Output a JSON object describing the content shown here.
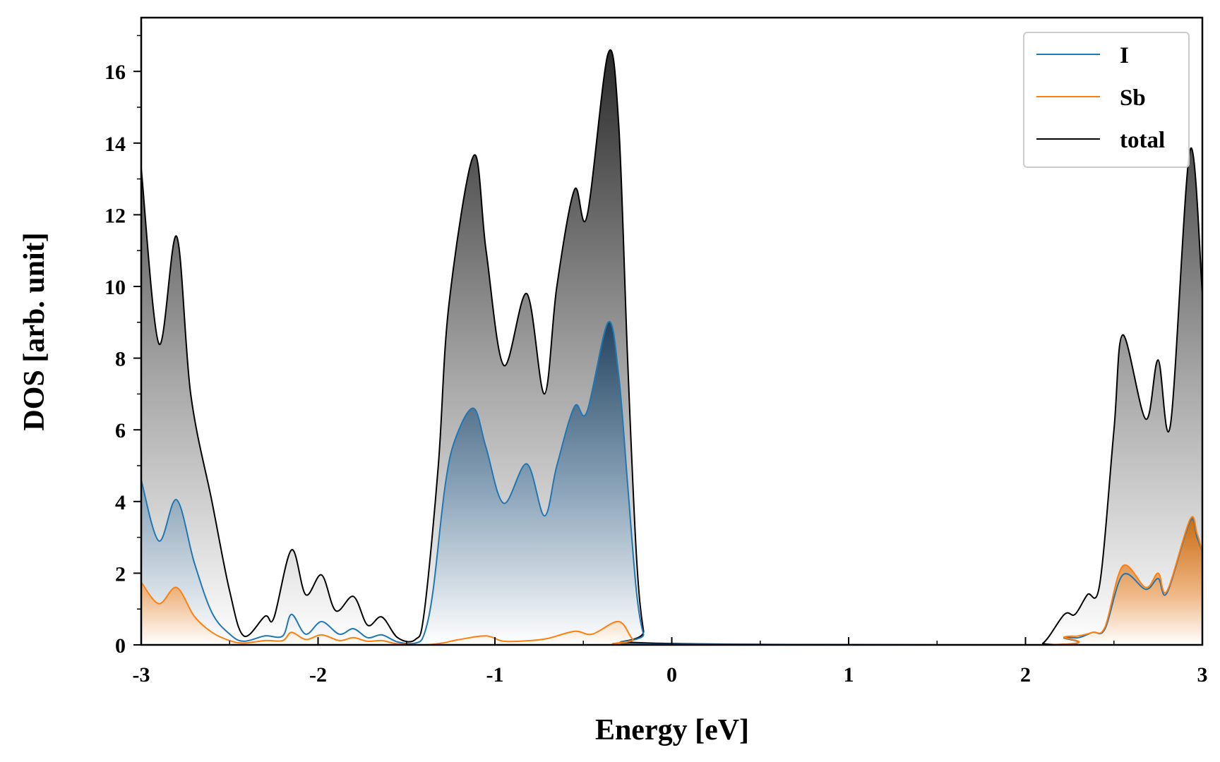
{
  "chart_data": {
    "type": "area",
    "title": "",
    "xlabel": "Energy [eV]",
    "ylabel": "DOS [arb. unit]",
    "xlim": [
      -3,
      3
    ],
    "ylim": [
      0,
      17.5
    ],
    "xticks": [
      -3,
      -2,
      -1,
      0,
      1,
      2,
      3
    ],
    "xtick_labels": [
      "-3",
      "-2",
      "-1",
      "0",
      "1",
      "2",
      "3"
    ],
    "yticks": [
      0,
      2,
      4,
      6,
      8,
      10,
      12,
      14,
      16
    ],
    "ytick_labels": [
      "0",
      "2",
      "4",
      "6",
      "8",
      "10",
      "12",
      "14",
      "16"
    ],
    "grid": false,
    "legend_position": "top-right",
    "series": [
      {
        "name": "I",
        "color": "#1f77b4",
        "fill": "gradient-blue",
        "points": [
          [
            -3,
            4.6
          ],
          [
            -2.9,
            2.9
          ],
          [
            -2.8,
            4.05
          ],
          [
            -2.7,
            2.3
          ],
          [
            -2.6,
            0.9
          ],
          [
            -2.5,
            0.3
          ],
          [
            -2.42,
            0.1
          ],
          [
            -2.3,
            0.25
          ],
          [
            -2.2,
            0.25
          ],
          [
            -2.15,
            0.85
          ],
          [
            -2.07,
            0.3
          ],
          [
            -1.98,
            0.65
          ],
          [
            -1.88,
            0.3
          ],
          [
            -1.8,
            0.45
          ],
          [
            -1.72,
            0.2
          ],
          [
            -1.64,
            0.28
          ],
          [
            -1.55,
            0.08
          ],
          [
            -1.45,
            0.05
          ],
          [
            -1.4,
            0.3
          ],
          [
            -1.35,
            1.5
          ],
          [
            -1.28,
            4.5
          ],
          [
            -1.22,
            5.8
          ],
          [
            -1.12,
            6.6
          ],
          [
            -1.05,
            5.5
          ],
          [
            -0.95,
            3.95
          ],
          [
            -0.82,
            5.05
          ],
          [
            -0.72,
            3.6
          ],
          [
            -0.65,
            5.0
          ],
          [
            -0.55,
            6.65
          ],
          [
            -0.48,
            6.5
          ],
          [
            -0.36,
            9.0
          ],
          [
            -0.3,
            7.5
          ],
          [
            -0.25,
            4.5
          ],
          [
            -0.2,
            1.5
          ],
          [
            -0.16,
            0.3
          ],
          [
            -0.12,
            0.02
          ],
          [
            2.1,
            0.0
          ],
          [
            2.22,
            0.2
          ],
          [
            2.3,
            0.2
          ],
          [
            2.38,
            0.35
          ],
          [
            2.45,
            0.45
          ],
          [
            2.55,
            1.95
          ],
          [
            2.68,
            1.55
          ],
          [
            2.75,
            1.85
          ],
          [
            2.8,
            1.45
          ],
          [
            2.93,
            3.45
          ],
          [
            2.97,
            3.0
          ],
          [
            3,
            2.6
          ]
        ]
      },
      {
        "name": "Sb",
        "color": "#ff7f0e",
        "fill": "gradient-orange",
        "points": [
          [
            -3,
            1.75
          ],
          [
            -2.9,
            1.15
          ],
          [
            -2.8,
            1.6
          ],
          [
            -2.7,
            0.8
          ],
          [
            -2.6,
            0.35
          ],
          [
            -2.5,
            0.12
          ],
          [
            -2.42,
            0.05
          ],
          [
            -2.3,
            0.12
          ],
          [
            -2.2,
            0.12
          ],
          [
            -2.15,
            0.35
          ],
          [
            -2.07,
            0.15
          ],
          [
            -1.98,
            0.28
          ],
          [
            -1.88,
            0.12
          ],
          [
            -1.8,
            0.2
          ],
          [
            -1.72,
            0.1
          ],
          [
            -1.64,
            0.12
          ],
          [
            -1.55,
            0.03
          ],
          [
            -1.4,
            0.0
          ],
          [
            -1.3,
            0.05
          ],
          [
            -1.2,
            0.15
          ],
          [
            -1.05,
            0.25
          ],
          [
            -0.95,
            0.1
          ],
          [
            -0.8,
            0.12
          ],
          [
            -0.7,
            0.18
          ],
          [
            -0.55,
            0.38
          ],
          [
            -0.45,
            0.3
          ],
          [
            -0.3,
            0.65
          ],
          [
            -0.22,
            0.15
          ],
          [
            -0.15,
            0.0
          ],
          [
            2.1,
            0.0
          ],
          [
            2.22,
            0.22
          ],
          [
            2.3,
            0.25
          ],
          [
            2.38,
            0.35
          ],
          [
            2.45,
            0.5
          ],
          [
            2.55,
            2.2
          ],
          [
            2.68,
            1.6
          ],
          [
            2.75,
            2.0
          ],
          [
            2.8,
            1.5
          ],
          [
            2.93,
            3.5
          ],
          [
            2.97,
            3.1
          ],
          [
            3,
            2.6
          ]
        ]
      },
      {
        "name": "total",
        "color": "#000000",
        "fill": "gradient-gray",
        "points": [
          [
            -3,
            13.3
          ],
          [
            -2.9,
            8.4
          ],
          [
            -2.8,
            11.4
          ],
          [
            -2.72,
            7.0
          ],
          [
            -2.6,
            4.0
          ],
          [
            -2.5,
            1.5
          ],
          [
            -2.42,
            0.25
          ],
          [
            -2.3,
            0.8
          ],
          [
            -2.25,
            0.75
          ],
          [
            -2.15,
            2.65
          ],
          [
            -2.07,
            1.4
          ],
          [
            -1.98,
            1.95
          ],
          [
            -1.9,
            0.95
          ],
          [
            -1.8,
            1.35
          ],
          [
            -1.72,
            0.55
          ],
          [
            -1.64,
            0.78
          ],
          [
            -1.55,
            0.2
          ],
          [
            -1.45,
            0.15
          ],
          [
            -1.4,
            0.9
          ],
          [
            -1.32,
            5.0
          ],
          [
            -1.26,
            9.5
          ],
          [
            -1.12,
            13.65
          ],
          [
            -1.05,
            11.0
          ],
          [
            -0.95,
            7.8
          ],
          [
            -0.82,
            9.8
          ],
          [
            -0.72,
            7.0
          ],
          [
            -0.65,
            10.0
          ],
          [
            -0.55,
            12.7
          ],
          [
            -0.48,
            11.95
          ],
          [
            -0.36,
            16.5
          ],
          [
            -0.3,
            14.5
          ],
          [
            -0.25,
            8.0
          ],
          [
            -0.2,
            2.5
          ],
          [
            -0.16,
            0.4
          ],
          [
            -0.12,
            0.05
          ],
          [
            2.0,
            0.0
          ],
          [
            2.1,
            0.05
          ],
          [
            2.22,
            0.85
          ],
          [
            2.28,
            0.85
          ],
          [
            2.35,
            1.4
          ],
          [
            2.42,
            1.7
          ],
          [
            2.5,
            6.0
          ],
          [
            2.55,
            8.65
          ],
          [
            2.68,
            6.3
          ],
          [
            2.75,
            7.95
          ],
          [
            2.82,
            6.15
          ],
          [
            2.93,
            13.8
          ],
          [
            3,
            9.8
          ]
        ]
      }
    ]
  }
}
